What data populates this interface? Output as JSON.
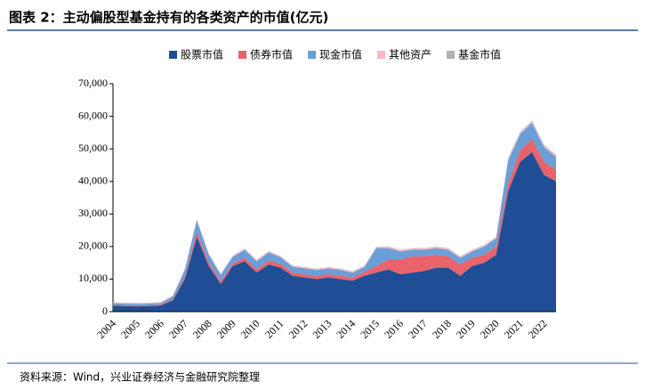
{
  "chart_data": {
    "type": "stacked_area",
    "title": "图表 2：主动偏股型基金持有的各类资产的市值(亿元)",
    "source": "资料来源：Wind，兴业证券经济与金融研究院整理",
    "categories": [
      "2004",
      null,
      "2005",
      null,
      "2006",
      null,
      "2007",
      null,
      "2008",
      null,
      "2009",
      null,
      "2010",
      null,
      "2011",
      null,
      "2012",
      null,
      "2013",
      null,
      "2014",
      null,
      "2015",
      null,
      "2016",
      null,
      "2017",
      null,
      "2018",
      null,
      "2019",
      null,
      "2020",
      null,
      "2021",
      null,
      "2022",
      null
    ],
    "series": [
      {
        "name": "股票市值",
        "color": "#1f4e96",
        "values": [
          1800,
          1700,
          1600,
          1700,
          1900,
          3500,
          10000,
          23000,
          14000,
          8500,
          14000,
          15500,
          12000,
          14500,
          13500,
          11000,
          10500,
          10000,
          10500,
          10000,
          9500,
          11000,
          12000,
          13000,
          11500,
          12000,
          12500,
          13500,
          13500,
          11000,
          14000,
          15000,
          17500,
          37000,
          46000,
          49000,
          42000,
          40000
        ]
      },
      {
        "name": "债券市值",
        "color": "#e8636b",
        "values": [
          300,
          300,
          300,
          300,
          300,
          400,
          800,
          1500,
          1000,
          800,
          800,
          1000,
          1000,
          1200,
          1200,
          1000,
          1000,
          1000,
          1000,
          1000,
          1000,
          1200,
          2000,
          3000,
          4500,
          5000,
          4500,
          4000,
          3500,
          3500,
          2500,
          2500,
          2500,
          2500,
          3500,
          4000,
          4000,
          3500
        ]
      },
      {
        "name": "现金市值",
        "color": "#6a9fd8",
        "values": [
          500,
          500,
          500,
          500,
          500,
          800,
          2000,
          3500,
          2500,
          2000,
          2000,
          2500,
          2500,
          2500,
          2000,
          1800,
          1800,
          1800,
          1800,
          1800,
          1500,
          1500,
          5500,
          3500,
          2500,
          2000,
          2000,
          2000,
          2000,
          2000,
          2000,
          2500,
          2500,
          7000,
          5000,
          5000,
          4500,
          4000
        ]
      },
      {
        "name": "其他资产",
        "color": "#f7b8c4",
        "values": [
          200,
          200,
          200,
          200,
          200,
          200,
          300,
          400,
          300,
          300,
          300,
          300,
          300,
          300,
          300,
          300,
          300,
          300,
          300,
          300,
          300,
          300,
          400,
          400,
          400,
          400,
          400,
          400,
          400,
          400,
          400,
          400,
          400,
          500,
          500,
          500,
          500,
          500
        ]
      },
      {
        "name": "基金市值",
        "color": "#b0b0b0",
        "values": [
          50,
          50,
          50,
          50,
          50,
          50,
          100,
          100,
          100,
          100,
          100,
          100,
          100,
          100,
          100,
          100,
          100,
          100,
          100,
          100,
          100,
          100,
          100,
          100,
          100,
          100,
          100,
          100,
          100,
          100,
          100,
          100,
          100,
          200,
          200,
          200,
          200,
          200
        ]
      }
    ],
    "ylim": [
      0,
      70000
    ],
    "yticks": [
      0,
      {
        "value": 10000,
        "label": "10,000"
      },
      {
        "value": 20000,
        "label": "20,000"
      },
      {
        "value": 30000,
        "label": "30,000"
      },
      {
        "value": 40000,
        "label": "40,000"
      },
      {
        "value": 50000,
        "label": "50,000"
      },
      {
        "value": 60000,
        "label": "60,000"
      },
      {
        "value": 70000,
        "label": "70,000"
      }
    ],
    "legend": "top"
  }
}
